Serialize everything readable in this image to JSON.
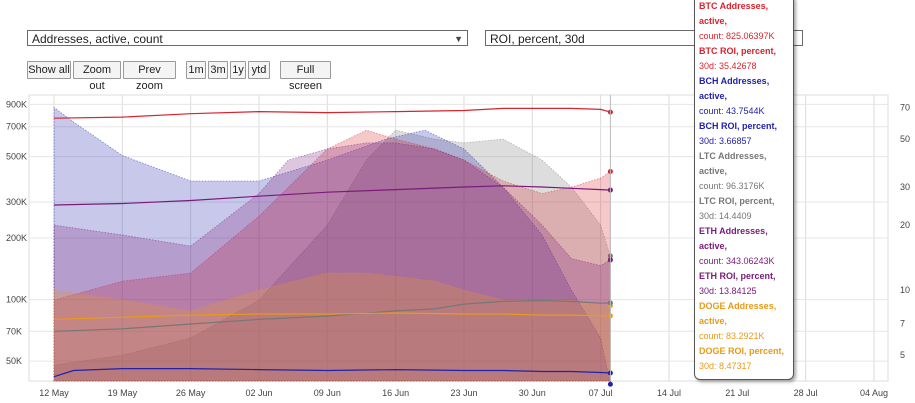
{
  "controls": {
    "left_metric": "Addresses, active, count",
    "right_metric": "ROI, percent, 30d",
    "buttons": [
      "Show all",
      "Zoom out",
      "Prev zoom",
      "1m",
      "3m",
      "1y",
      "ytd",
      "Full screen"
    ]
  },
  "tooltip": [
    {
      "name": "BTC Addresses, active,",
      "value": "count: 825.06397K",
      "color": "#d9232d"
    },
    {
      "name": "BTC ROI, percent,",
      "value": "30d: 35.42678",
      "color": "#d9232d"
    },
    {
      "name": "BCH Addresses, active,",
      "value": "count: 43.7544K",
      "color": "#2222aa"
    },
    {
      "name": "BCH ROI, percent,",
      "value": "30d: 3.66857",
      "color": "#2222aa"
    },
    {
      "name": "LTC Addresses, active,",
      "value": "count: 96.3176K",
      "color": "#777777"
    },
    {
      "name": "LTC ROI, percent,",
      "value": "30d: 14.4409",
      "color": "#777777"
    },
    {
      "name": "ETH Addresses, active,",
      "value": "count: 343.06243K",
      "color": "#7a1a7a"
    },
    {
      "name": "ETH ROI, percent,",
      "value": "30d: 13.84125",
      "color": "#7a1a7a"
    },
    {
      "name": "DOGE Addresses, active,",
      "value": "count: 83.2921K",
      "color": "#e89a1a"
    },
    {
      "name": "DOGE ROI, percent,",
      "value": "30d: 8.47317",
      "color": "#e89a1a"
    }
  ],
  "chart_data": {
    "type": "area",
    "x": [
      "12 May",
      "19 May",
      "26 May",
      "02 Jun",
      "09 Jun",
      "16 Jun",
      "23 Jun",
      "30 Jun",
      "07 Jul",
      "14 Jul",
      "21 Jul",
      "28 Jul",
      "04 Aug"
    ],
    "left_axis": {
      "scale": "log",
      "range": [
        40000,
        1000000
      ],
      "ticks": [
        50000,
        70000,
        100000,
        200000,
        300000,
        500000,
        700000,
        900000
      ],
      "tick_labels": [
        "50K",
        "70K",
        "100K",
        "200K",
        "300K",
        "500K",
        "700K",
        "900K"
      ]
    },
    "right_axis": {
      "scale": "log",
      "range": [
        3.8,
        80
      ],
      "ticks": [
        5,
        7,
        10,
        20,
        30,
        50,
        70
      ],
      "tick_labels": [
        "5",
        "7",
        "10",
        "20",
        "30",
        "50",
        "70"
      ]
    },
    "grid": true,
    "series": [
      {
        "name": "LTC ROI, percent, 30d",
        "axis": "right",
        "kind": "area",
        "color": "#777777",
        "x": [
          8,
          15,
          22,
          29,
          36,
          40,
          43,
          47,
          50,
          54,
          58,
          61,
          64,
          65
        ],
        "values": [
          4.5,
          5,
          6,
          9,
          20,
          40,
          55,
          50,
          48,
          50,
          40,
          30,
          20,
          14.4
        ]
      },
      {
        "name": "BCH ROI, percent, 30d",
        "axis": "right",
        "kind": "area",
        "color": "#2222aa",
        "x": [
          8,
          10,
          15,
          22,
          29,
          36,
          42,
          46,
          50,
          54,
          58,
          61,
          64,
          65
        ],
        "values": [
          70,
          60,
          42,
          32,
          32,
          40,
          50,
          55,
          45,
          30,
          18,
          10,
          6,
          3.67
        ]
      },
      {
        "name": "BTC ROI, percent, 30d",
        "axis": "right",
        "kind": "area",
        "color": "#d9232d",
        "x": [
          8,
          15,
          22,
          29,
          36,
          40,
          43,
          47,
          50,
          54,
          58,
          61,
          64,
          65
        ],
        "values": [
          9,
          11,
          12,
          22,
          45,
          55,
          50,
          45,
          40,
          32,
          28,
          30,
          33,
          35.4
        ]
      },
      {
        "name": "ETH ROI, percent, 30d",
        "axis": "right",
        "kind": "area",
        "color": "#7a1a7a",
        "x": [
          8,
          15,
          22,
          29,
          32,
          36,
          40,
          43,
          47,
          50,
          54,
          58,
          61,
          64,
          65
        ],
        "values": [
          20,
          18,
          16,
          28,
          40,
          45,
          48,
          48,
          45,
          40,
          30,
          20,
          14,
          13,
          13.8
        ]
      },
      {
        "name": "DOGE ROI, percent, 30d",
        "axis": "right",
        "kind": "area",
        "color": "#e89a1a",
        "x": [
          8,
          15,
          22,
          29,
          36,
          40,
          47,
          50,
          54,
          58,
          61,
          64,
          65
        ],
        "values": [
          10,
          9,
          8,
          10,
          12,
          12,
          11,
          10,
          9,
          9,
          9,
          8.5,
          8.47
        ]
      },
      {
        "name": "BTC Addresses, active, count",
        "axis": "left",
        "kind": "line",
        "color": "#d9232d",
        "x": [
          8,
          15,
          22,
          29,
          36,
          43,
          50,
          54,
          58,
          61,
          64,
          65
        ],
        "values": [
          770000,
          780000,
          810000,
          830000,
          820000,
          830000,
          840000,
          860000,
          860000,
          860000,
          850000,
          825064
        ]
      },
      {
        "name": "ETH Addresses, active, count",
        "axis": "left",
        "kind": "line",
        "color": "#7a1a7a",
        "x": [
          8,
          15,
          22,
          29,
          36,
          43,
          50,
          54,
          58,
          61,
          64,
          65
        ],
        "values": [
          290000,
          295000,
          305000,
          320000,
          335000,
          345000,
          355000,
          360000,
          355000,
          350000,
          345000,
          343062
        ]
      },
      {
        "name": "LTC Addresses, active, count",
        "axis": "left",
        "kind": "line",
        "color": "#777777",
        "x": [
          8,
          15,
          22,
          29,
          36,
          43,
          47,
          50,
          54,
          58,
          61,
          64,
          65
        ],
        "values": [
          70000,
          72000,
          76000,
          80000,
          83000,
          88000,
          90000,
          95000,
          98000,
          99000,
          98000,
          96000,
          96318
        ]
      },
      {
        "name": "DOGE Addresses, active, count",
        "axis": "left",
        "kind": "line",
        "color": "#e89a1a",
        "x": [
          8,
          15,
          22,
          29,
          36,
          43,
          50,
          54,
          58,
          61,
          64,
          65
        ],
        "values": [
          80000,
          82000,
          84000,
          85000,
          85000,
          86000,
          85000,
          85000,
          84000,
          84000,
          83500,
          83292
        ]
      },
      {
        "name": "BCH Addresses, active, count",
        "axis": "left",
        "kind": "line",
        "color": "#2222aa",
        "x": [
          8,
          10,
          15,
          22,
          29,
          36,
          43,
          50,
          54,
          58,
          61,
          64,
          65
        ],
        "values": [
          42000,
          45000,
          46000,
          46000,
          45500,
          45000,
          45500,
          45000,
          45000,
          44500,
          44500,
          44000,
          43754
        ]
      }
    ]
  }
}
